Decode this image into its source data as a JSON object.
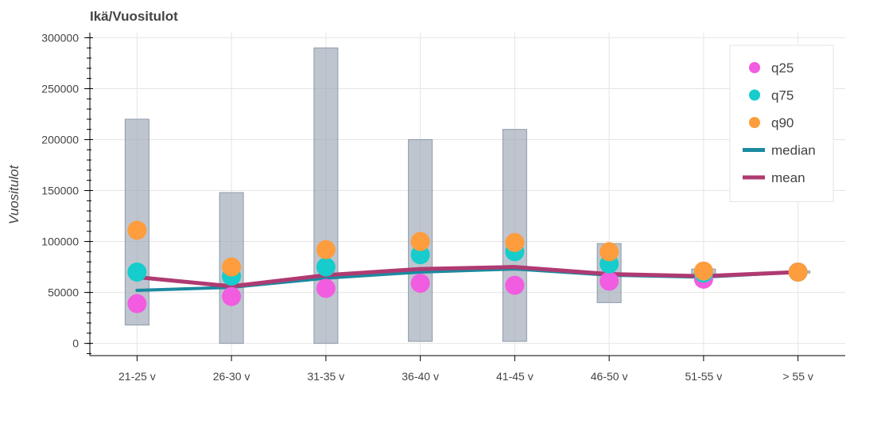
{
  "chart_data": {
    "type": "bar",
    "title": "Ikä/Vuositulot",
    "xlabel": "",
    "ylabel": "Vuositulot",
    "ylim": [
      -12000,
      305000
    ],
    "yticks": [
      0,
      50000,
      100000,
      150000,
      200000,
      250000,
      300000
    ],
    "grid": true,
    "legend_position": "top-right",
    "categories": [
      "21-25 v",
      "26-30 v",
      "31-35 v",
      "36-40 v",
      "41-45 v",
      "46-50 v",
      "51-55 v",
      "> 55 v"
    ],
    "range": {
      "min": [
        18000,
        0,
        0,
        2000,
        2000,
        40000,
        67000,
        69000
      ],
      "max": [
        220000,
        148000,
        290000,
        200000,
        210000,
        98000,
        73000,
        71000
      ],
      "color": "#a3adba"
    },
    "series": [
      {
        "name": "q25",
        "type": "scatter",
        "color": "#f25ce0",
        "values": [
          39000,
          46000,
          54000,
          59000,
          57000,
          61000,
          63000,
          70000
        ]
      },
      {
        "name": "q75",
        "type": "scatter",
        "color": "#16cccc",
        "values": [
          70000,
          66000,
          75000,
          87000,
          90000,
          78000,
          69000,
          70000
        ]
      },
      {
        "name": "q90",
        "type": "scatter",
        "color": "#fd9d3d",
        "values": [
          111000,
          75000,
          92000,
          100000,
          99000,
          90000,
          71000,
          70000
        ]
      },
      {
        "name": "median",
        "type": "line",
        "color": "#1b8aa0",
        "values": [
          52000,
          55000,
          64000,
          70000,
          73000,
          67000,
          65000,
          70000
        ]
      },
      {
        "name": "mean",
        "type": "line",
        "color": "#b03a72",
        "values": [
          65000,
          56000,
          67000,
          73000,
          75000,
          68000,
          66000,
          70000
        ]
      }
    ]
  }
}
